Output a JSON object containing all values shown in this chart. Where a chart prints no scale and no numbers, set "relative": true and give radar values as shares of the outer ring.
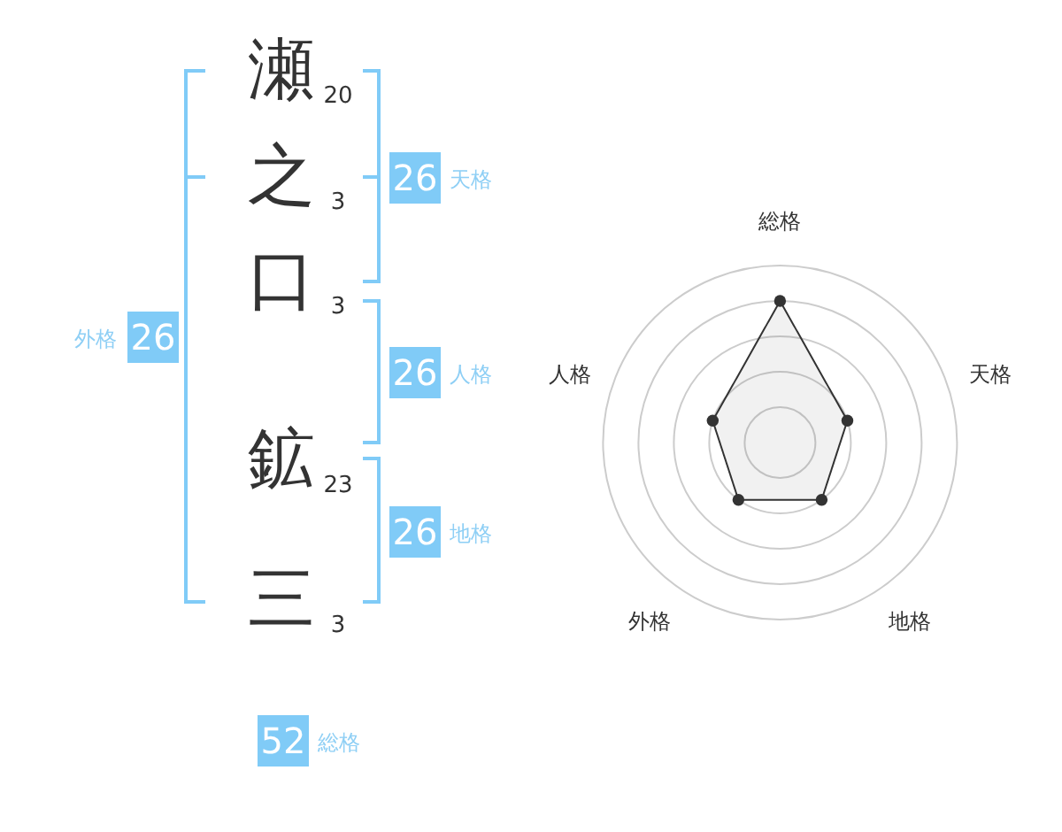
{
  "chart_data": [
    {
      "type": "other",
      "categories": [
        "瀬",
        "之",
        "口",
        "鉱",
        "三",
        "天格",
        "人格",
        "地格",
        "外格",
        "総格"
      ],
      "values": [
        20,
        3,
        3,
        23,
        3,
        26,
        26,
        26,
        26,
        52
      ],
      "data_labels": true
    },
    {
      "type": "radar",
      "categories": [
        "総格",
        "天格",
        "地格",
        "外格",
        "人格"
      ],
      "relative": true,
      "series": [
        {
          "color": "#333333",
          "values": [
            0.8,
            0.4,
            0.4,
            0.4,
            0.4
          ]
        }
      ],
      "marker": "circle",
      "grid": true
    }
  ]
}
